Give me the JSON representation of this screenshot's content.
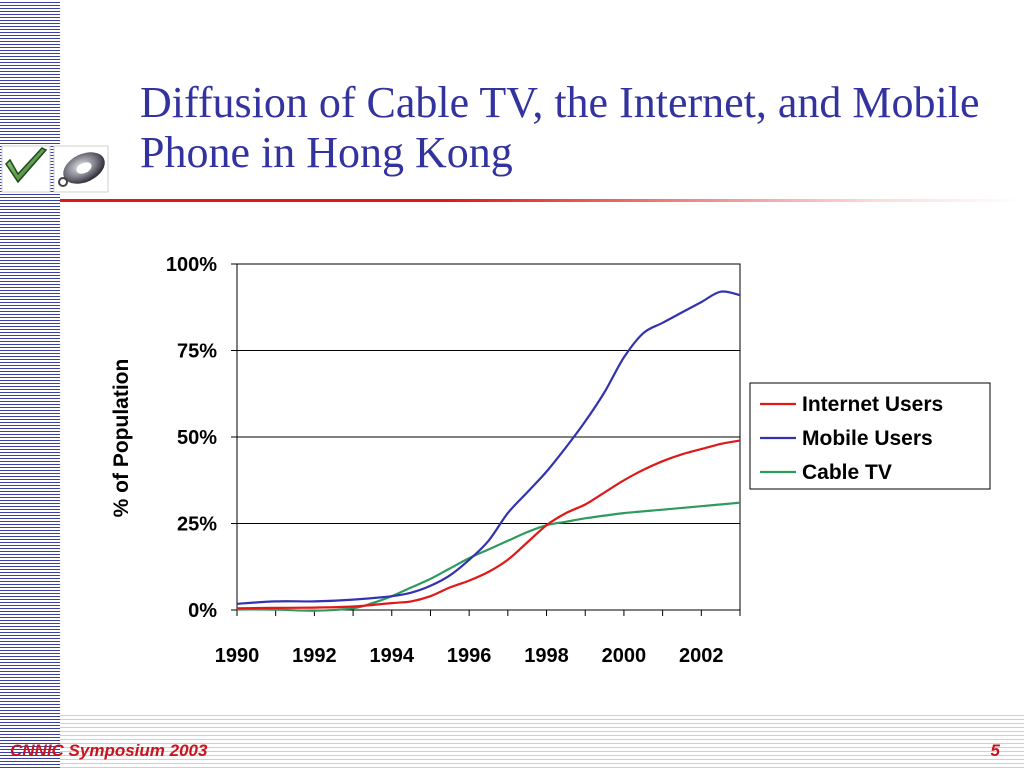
{
  "slide": {
    "title": "Diffusion of Cable TV, the Internet, and Mobile Phone in Hong Kong",
    "footer_left": "CNNIC Symposium 2003",
    "page_number": "5"
  },
  "colors": {
    "title": "#3333a0",
    "accent_rule": "#e01818",
    "footer_text": "#c8141e",
    "stripes": "#3b3fa6",
    "footer_stripes": "#f2d64e"
  },
  "chart_data": {
    "type": "line",
    "ylabel": "% of Population",
    "xlabel": "",
    "xlim": [
      1990,
      2003
    ],
    "ylim": [
      0,
      100
    ],
    "x_ticks": [
      1990,
      1992,
      1994,
      1996,
      1998,
      2000,
      2002
    ],
    "x_tick_labels": [
      "1990",
      "1992",
      "1994",
      "1996",
      "1998",
      "2000",
      "2002"
    ],
    "y_ticks": [
      0,
      25,
      50,
      75,
      100
    ],
    "y_tick_labels": [
      "0%",
      "25%",
      "50%",
      "75%",
      "100%"
    ],
    "grid": "horizontal",
    "legend_position": "right",
    "series": [
      {
        "name": "Internet Users",
        "color": "#e01818",
        "x": [
          1990,
          1991,
          1992,
          1993,
          1994,
          1994.5,
          1995,
          1995.5,
          1996,
          1996.5,
          1997,
          1997.5,
          1998,
          1998.5,
          1999,
          1999.5,
          2000,
          2000.5,
          2001,
          2001.5,
          2002,
          2002.5,
          2003
        ],
        "y": [
          0.5,
          0.6,
          0.7,
          1.0,
          2.0,
          2.5,
          4.0,
          6.5,
          8.5,
          11.0,
          14.5,
          19.5,
          24.5,
          28.0,
          30.5,
          34.0,
          37.5,
          40.5,
          43.0,
          45.0,
          46.5,
          48.0,
          49.0
        ]
      },
      {
        "name": "Mobile Users",
        "color": "#3333b0",
        "x": [
          1990,
          1991,
          1992,
          1993,
          1994,
          1994.5,
          1995,
          1995.5,
          1996,
          1996.5,
          1997,
          1997.5,
          1998,
          1998.5,
          1999,
          1999.5,
          2000,
          2000.5,
          2001,
          2001.5,
          2002,
          2002.5,
          2003
        ],
        "y": [
          1.8,
          2.5,
          2.5,
          3.0,
          4.0,
          5.0,
          7.0,
          10.0,
          14.5,
          20.0,
          28.0,
          34.0,
          40.0,
          47.0,
          54.5,
          63.0,
          73.0,
          80.0,
          83.0,
          86.0,
          89.0,
          92.0,
          91.0
        ]
      },
      {
        "name": "Cable TV",
        "color": "#2e9a5e",
        "x": [
          1990,
          1991,
          1992,
          1993,
          1993.5,
          1994,
          1994.5,
          1995,
          1995.5,
          1996,
          1996.5,
          1997,
          1997.5,
          1998,
          1998.5,
          1999,
          2000,
          2001,
          2002,
          2003
        ],
        "y": [
          0.2,
          0.1,
          -0.2,
          0.5,
          2.0,
          4.0,
          6.5,
          9.0,
          12.0,
          15.0,
          17.5,
          20.0,
          22.5,
          24.5,
          25.5,
          26.5,
          28.0,
          29.0,
          30.0,
          31.0
        ]
      }
    ]
  }
}
